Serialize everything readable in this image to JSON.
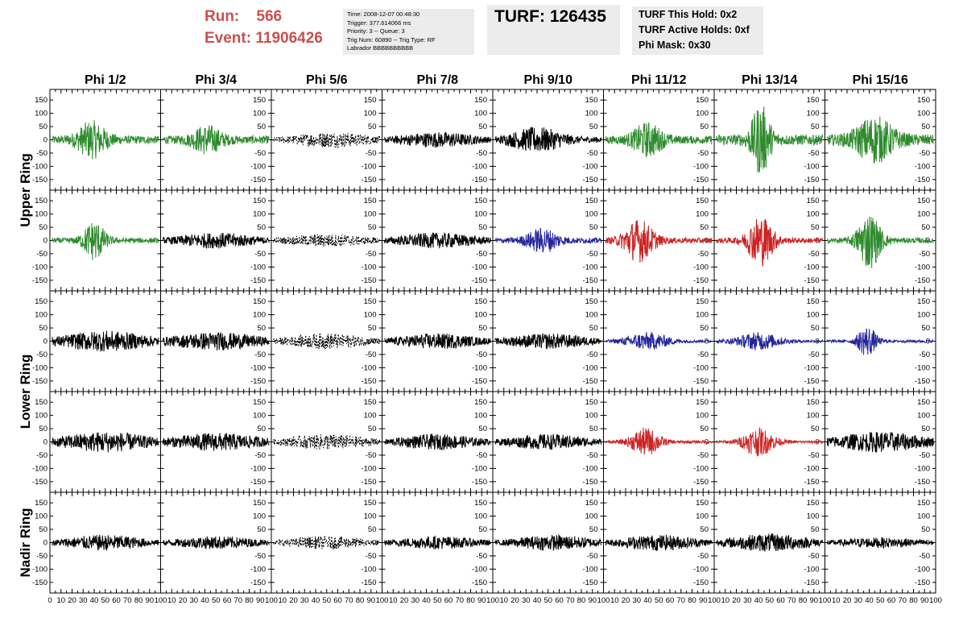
{
  "header": {
    "run_label": "Run:",
    "run_value": "566",
    "event_label": "Event:",
    "event_value": "11906426",
    "info_lines": [
      "Time: 2008-12-07 00:48:30",
      "Trigger: 377.614066 ms",
      "Priority: 3 -- Queue: 3",
      "Trig Num: 60890 -- Trig Type: RF",
      "Labrador BBBBBBBBBB"
    ],
    "turf_label": "TURF:",
    "turf_value": "126435",
    "hold_lines": [
      "TURF This Hold: 0x2",
      "TURF Active Holds: 0xf",
      "Phi Mask: 0x30"
    ]
  },
  "chart_data": {
    "type": "line",
    "columns": [
      "Phi 1/2",
      "Phi 3/4",
      "Phi 5/6",
      "Phi 7/8",
      "Phi 9/10",
      "Phi 11/12",
      "Phi 13/14",
      "Phi 15/16"
    ],
    "rows": [
      "Upper Ring",
      "Lower Ring",
      "Nadir Ring"
    ],
    "xlim": [
      0,
      100
    ],
    "ylim": [
      -190,
      190
    ],
    "x_ticks": [
      0,
      10,
      20,
      30,
      40,
      50,
      60,
      70,
      80,
      90,
      100
    ],
    "y_ticks": [
      -150,
      -100,
      -50,
      0,
      50,
      100,
      150
    ],
    "colors": {
      "green": "#2e8b2e",
      "blue": "#24259a",
      "red": "#cc2222",
      "black": "#000000"
    },
    "panels": [
      {
        "row": 0,
        "col": 0,
        "color": "green",
        "amplitude": 60,
        "center": 38,
        "width": 14,
        "baseline": 15
      },
      {
        "row": 0,
        "col": 1,
        "color": "green",
        "amplitude": 45,
        "center": 42,
        "width": 14,
        "baseline": 15
      },
      {
        "row": 0,
        "col": 2,
        "color": "black",
        "amplitude": 25,
        "center": 55,
        "width": 40,
        "baseline": 5,
        "dashed": true
      },
      {
        "row": 0,
        "col": 3,
        "color": "black",
        "amplitude": 25,
        "center": 50,
        "width": 40,
        "baseline": 5
      },
      {
        "row": 0,
        "col": 4,
        "color": "black",
        "amplitude": 40,
        "center": 40,
        "width": 25,
        "baseline": 10
      },
      {
        "row": 0,
        "col": 5,
        "color": "green",
        "amplitude": 55,
        "center": 40,
        "width": 14,
        "baseline": 15
      },
      {
        "row": 0,
        "col": 6,
        "color": "green",
        "amplitude": 120,
        "center": 42,
        "width": 9,
        "baseline": 20
      },
      {
        "row": 0,
        "col": 7,
        "color": "green",
        "amplitude": 75,
        "center": 45,
        "width": 18,
        "baseline": 20
      },
      {
        "row": 1,
        "col": 0,
        "color": "green",
        "amplitude": 70,
        "center": 40,
        "width": 10,
        "baseline": 10
      },
      {
        "row": 1,
        "col": 1,
        "color": "black",
        "amplitude": 25,
        "center": 50,
        "width": 40,
        "baseline": 5
      },
      {
        "row": 1,
        "col": 2,
        "color": "black",
        "amplitude": 20,
        "center": 50,
        "width": 40,
        "baseline": 5,
        "dashed": true
      },
      {
        "row": 1,
        "col": 3,
        "color": "black",
        "amplitude": 25,
        "center": 50,
        "width": 40,
        "baseline": 5
      },
      {
        "row": 1,
        "col": 4,
        "color": "blue",
        "amplitude": 40,
        "center": 45,
        "width": 15,
        "baseline": 10
      },
      {
        "row": 1,
        "col": 5,
        "color": "red",
        "amplitude": 75,
        "center": 32,
        "width": 14,
        "baseline": 10
      },
      {
        "row": 1,
        "col": 6,
        "color": "red",
        "amplitude": 90,
        "center": 42,
        "width": 12,
        "baseline": 10
      },
      {
        "row": 1,
        "col": 7,
        "color": "green",
        "amplitude": 100,
        "center": 40,
        "width": 11,
        "baseline": 10
      },
      {
        "row": 2,
        "col": 0,
        "color": "black",
        "amplitude": 30,
        "center": 50,
        "width": 40,
        "baseline": 10
      },
      {
        "row": 2,
        "col": 1,
        "color": "black",
        "amplitude": 25,
        "center": 50,
        "width": 40,
        "baseline": 10
      },
      {
        "row": 2,
        "col": 2,
        "color": "black",
        "amplitude": 25,
        "center": 50,
        "width": 40,
        "baseline": 5,
        "dashed": true
      },
      {
        "row": 2,
        "col": 3,
        "color": "black",
        "amplitude": 25,
        "center": 50,
        "width": 40,
        "baseline": 5
      },
      {
        "row": 2,
        "col": 4,
        "color": "black",
        "amplitude": 25,
        "center": 50,
        "width": 40,
        "baseline": 5
      },
      {
        "row": 2,
        "col": 5,
        "color": "blue",
        "amplitude": 30,
        "center": 40,
        "width": 20,
        "baseline": 5
      },
      {
        "row": 2,
        "col": 6,
        "color": "blue",
        "amplitude": 30,
        "center": 40,
        "width": 20,
        "baseline": 5
      },
      {
        "row": 2,
        "col": 7,
        "color": "blue",
        "amplitude": 55,
        "center": 38,
        "width": 9,
        "baseline": 5
      },
      {
        "row": 3,
        "col": 0,
        "color": "black",
        "amplitude": 30,
        "center": 50,
        "width": 40,
        "baseline": 10
      },
      {
        "row": 3,
        "col": 1,
        "color": "black",
        "amplitude": 25,
        "center": 50,
        "width": 40,
        "baseline": 10
      },
      {
        "row": 3,
        "col": 2,
        "color": "black",
        "amplitude": 25,
        "center": 50,
        "width": 40,
        "baseline": 5,
        "dashed": true
      },
      {
        "row": 3,
        "col": 3,
        "color": "black",
        "amplitude": 25,
        "center": 50,
        "width": 40,
        "baseline": 5
      },
      {
        "row": 3,
        "col": 4,
        "color": "black",
        "amplitude": 25,
        "center": 50,
        "width": 40,
        "baseline": 5
      },
      {
        "row": 3,
        "col": 5,
        "color": "red",
        "amplitude": 50,
        "center": 38,
        "width": 14,
        "baseline": 5
      },
      {
        "row": 3,
        "col": 6,
        "color": "red",
        "amplitude": 50,
        "center": 40,
        "width": 15,
        "baseline": 5
      },
      {
        "row": 3,
        "col": 7,
        "color": "black",
        "amplitude": 30,
        "center": 50,
        "width": 40,
        "baseline": 10
      },
      {
        "row": 4,
        "col": 0,
        "color": "black",
        "amplitude": 25,
        "center": 50,
        "width": 40,
        "baseline": 5
      },
      {
        "row": 4,
        "col": 1,
        "color": "black",
        "amplitude": 20,
        "center": 50,
        "width": 40,
        "baseline": 5
      },
      {
        "row": 4,
        "col": 2,
        "color": "black",
        "amplitude": 20,
        "center": 50,
        "width": 40,
        "baseline": 5,
        "dashed": true
      },
      {
        "row": 4,
        "col": 3,
        "color": "black",
        "amplitude": 20,
        "center": 50,
        "width": 40,
        "baseline": 5
      },
      {
        "row": 4,
        "col": 4,
        "color": "black",
        "amplitude": 25,
        "center": 55,
        "width": 40,
        "baseline": 5
      },
      {
        "row": 4,
        "col": 5,
        "color": "black",
        "amplitude": 25,
        "center": 50,
        "width": 40,
        "baseline": 5
      },
      {
        "row": 4,
        "col": 6,
        "color": "black",
        "amplitude": 30,
        "center": 50,
        "width": 40,
        "baseline": 5
      },
      {
        "row": 4,
        "col": 7,
        "color": "black",
        "amplitude": 15,
        "center": 50,
        "width": 40,
        "baseline": 5
      }
    ]
  }
}
